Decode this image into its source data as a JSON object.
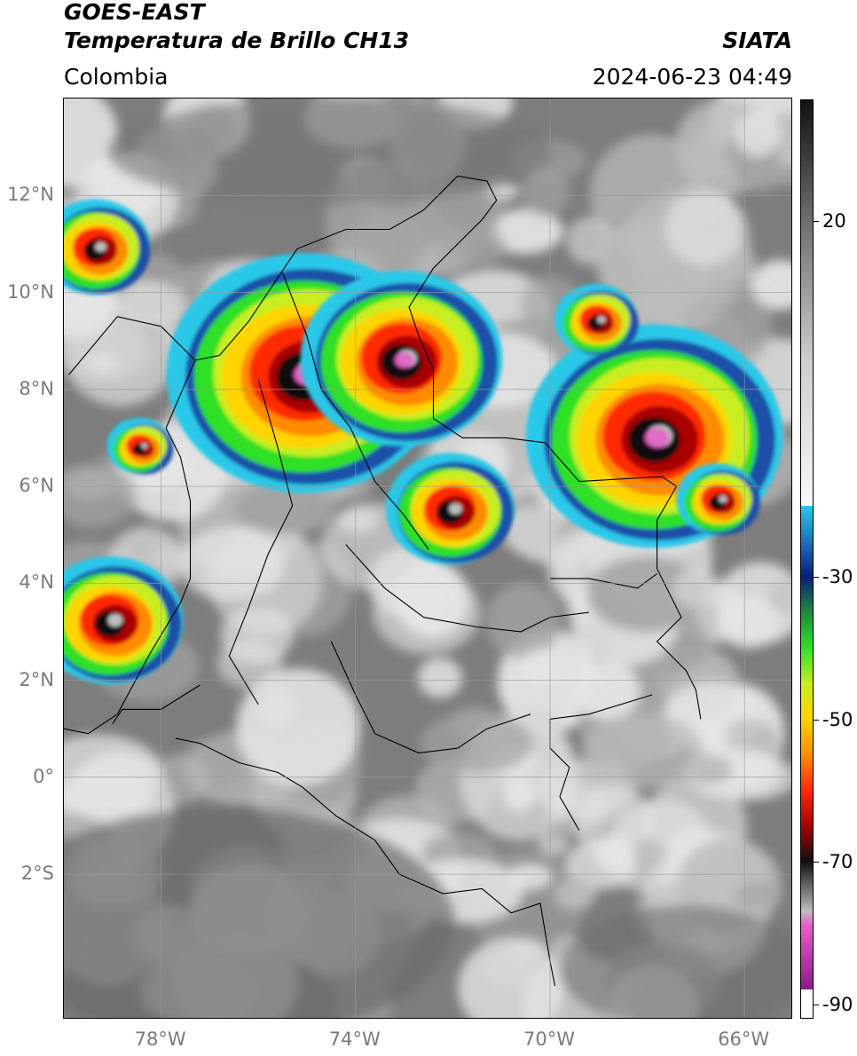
{
  "header": {
    "title_line1": "GOES-EAST",
    "title_line2": "Temperatura de Brillo CH13",
    "region": "Colombia",
    "brand": "SIATA",
    "timestamp": "2024-06-23 04:49"
  },
  "axes": {
    "lat_labels": [
      {
        "text": "12°N",
        "value": 12
      },
      {
        "text": "10°N",
        "value": 10
      },
      {
        "text": "8°N",
        "value": 8
      },
      {
        "text": "6°N",
        "value": 6
      },
      {
        "text": "4°N",
        "value": 4
      },
      {
        "text": "2°N",
        "value": 2
      },
      {
        "text": "0°",
        "value": 0
      },
      {
        "text": "2°S",
        "value": -2
      }
    ],
    "lon_labels": [
      {
        "text": "78°W",
        "value": -78
      },
      {
        "text": "74°W",
        "value": -74
      },
      {
        "text": "70°W",
        "value": -70
      },
      {
        "text": "66°W",
        "value": -66
      }
    ],
    "lat_range": [
      -5,
      14
    ],
    "lon_range": [
      -80,
      -65
    ],
    "grid": true
  },
  "colorbar": {
    "labels": [
      {
        "text": "20",
        "value": 20
      },
      {
        "text": "-30",
        "value": -30
      },
      {
        "text": "-50",
        "value": -50
      },
      {
        "text": "-70",
        "value": -70
      },
      {
        "text": "-90",
        "value": -90
      }
    ],
    "range": [
      -92,
      37
    ],
    "stops": [
      {
        "value": 37,
        "color": "#111111"
      },
      {
        "value": 20,
        "color": "#6e6e6e"
      },
      {
        "value": 0,
        "color": "#cfcfcf"
      },
      {
        "value": -20,
        "color": "#f8f8f8"
      },
      {
        "value": -20.01,
        "color": "#29c8e8"
      },
      {
        "value": -27,
        "color": "#1a4fa8"
      },
      {
        "value": -30,
        "color": "#0a1f7a"
      },
      {
        "value": -35,
        "color": "#1f8a3a"
      },
      {
        "value": -40,
        "color": "#2fe028"
      },
      {
        "value": -45,
        "color": "#c8ee20"
      },
      {
        "value": -50,
        "color": "#ffd400"
      },
      {
        "value": -55,
        "color": "#ff8c00"
      },
      {
        "value": -60,
        "color": "#ff2a00"
      },
      {
        "value": -65,
        "color": "#a80000"
      },
      {
        "value": -70,
        "color": "#101010"
      },
      {
        "value": -77,
        "color": "#bdbdbd"
      },
      {
        "value": -79,
        "color": "#e85ec8"
      },
      {
        "value": -88,
        "color": "#8a1a8a"
      },
      {
        "value": -88.01,
        "color": "#ffffff"
      },
      {
        "value": -92,
        "color": "#ffffff"
      }
    ]
  },
  "palette": {
    "cloud_light": "#e6e6e6",
    "cloud_mid": "#bdbdbd",
    "clear_dark": "#7d7d7d",
    "border": "#000000"
  },
  "storms": [
    {
      "lon": -75.0,
      "lat": 8.3,
      "ring_scale": 1.5
    },
    {
      "lon": -73.0,
      "lat": 8.6,
      "ring_scale": 1.1
    },
    {
      "lon": -67.8,
      "lat": 7.0,
      "ring_scale": 1.4
    },
    {
      "lon": -79.3,
      "lat": 10.9,
      "ring_scale": 0.6
    },
    {
      "lon": -72.0,
      "lat": 5.5,
      "ring_scale": 0.7
    },
    {
      "lon": -79.0,
      "lat": 3.2,
      "ring_scale": 0.8
    },
    {
      "lon": -69.0,
      "lat": 9.4,
      "ring_scale": 0.45
    },
    {
      "lon": -66.5,
      "lat": 5.7,
      "ring_scale": 0.45
    },
    {
      "lon": -78.4,
      "lat": 6.8,
      "ring_scale": 0.35
    }
  ]
}
